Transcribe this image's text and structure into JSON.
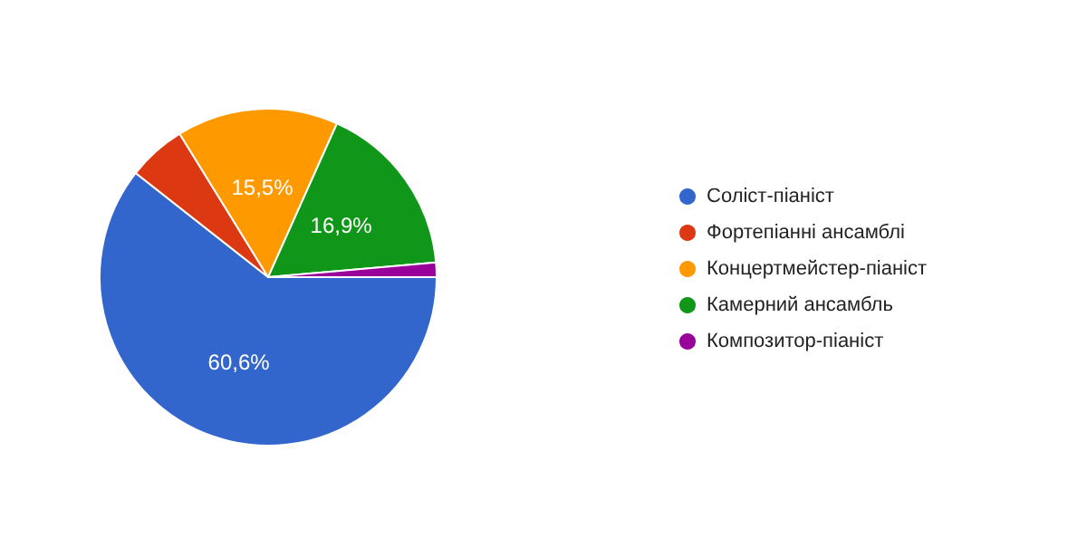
{
  "chart_data": {
    "type": "pie",
    "categories": [
      "Соліст-піаніст",
      "Фортепіанні ансамблі",
      "Концертмейстер-піаніст",
      "Камерний ансамбль",
      "Композитор-піаніст"
    ],
    "values": [
      60.6,
      5.6,
      15.5,
      16.9,
      1.4
    ],
    "colors": [
      "#3366cc",
      "#dc3912",
      "#ff9900",
      "#109618",
      "#990099"
    ],
    "value_labels": [
      "60,6%",
      null,
      "15,5%",
      "16,9%",
      null
    ],
    "legend": "right"
  }
}
